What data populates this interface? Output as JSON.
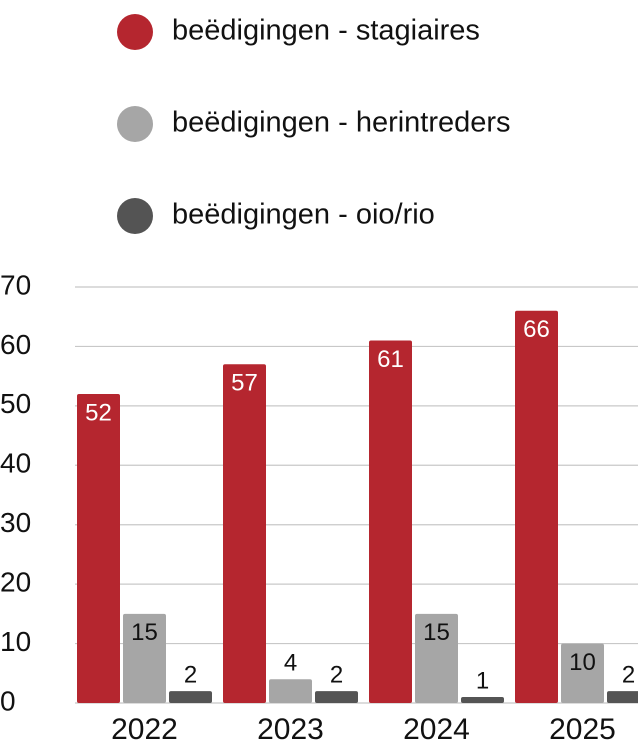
{
  "chart_data": {
    "type": "bar",
    "categories": [
      "2022",
      "2023",
      "2024",
      "2025"
    ],
    "series": [
      {
        "name": "beëdigingen - stagiaires",
        "color": "#b5262f",
        "values": [
          52,
          57,
          61,
          66
        ]
      },
      {
        "name": "beëdigingen - herintreders",
        "color": "#a6a6a6",
        "values": [
          15,
          4,
          15,
          10
        ]
      },
      {
        "name": "beëdigingen - oio/rio",
        "color": "#545454",
        "values": [
          2,
          2,
          1,
          2
        ]
      }
    ],
    "ylim": [
      0,
      70
    ],
    "yticks": [
      0,
      10,
      20,
      30,
      40,
      50,
      60,
      70
    ],
    "grid": true,
    "legend": "top"
  }
}
